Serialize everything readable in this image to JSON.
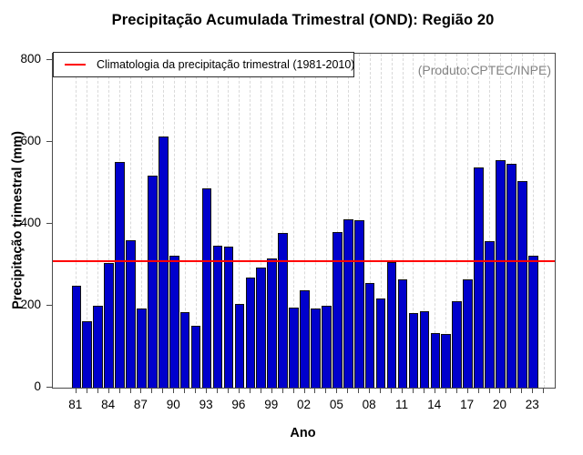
{
  "title": "Precipitação Acumulada Trimestral (OND): Região 20",
  "watermark": "(Produto:CPTEC/INPE)",
  "xlabel": "Ano",
  "ylabel": "Precipitação trimestral (mm)",
  "legend": {
    "label": "Climatologia da precipitação trimestral (1981-2010)",
    "line_color": "#ff0000"
  },
  "colors": {
    "bar_fill": "#0000cc",
    "bar_border": "#101010",
    "climatology_line": "#ff0000",
    "gridline": "#d9d9d9",
    "watermark_text": "#838383",
    "frame": "#4a4a4a"
  },
  "chart_data": {
    "type": "bar",
    "title": "Precipitação Acumulada Trimestral (OND): Região 20",
    "xlabel": "Ano",
    "ylabel": "Precipitação trimestral (mm)",
    "x": [
      "81",
      "82",
      "83",
      "84",
      "85",
      "86",
      "87",
      "88",
      "89",
      "90",
      "91",
      "92",
      "93",
      "94",
      "95",
      "96",
      "97",
      "98",
      "99",
      "00",
      "01",
      "02",
      "03",
      "04",
      "05",
      "06",
      "07",
      "08",
      "09",
      "10",
      "11",
      "12",
      "13",
      "14",
      "15",
      "16",
      "17",
      "18",
      "19",
      "20",
      "21",
      "22",
      "23",
      "24"
    ],
    "values": [
      248,
      162,
      200,
      305,
      551,
      360,
      193,
      517,
      614,
      322,
      185,
      152,
      487,
      347,
      344,
      204,
      268,
      294,
      315,
      378,
      196,
      237,
      194,
      199,
      380,
      411,
      408,
      255,
      217,
      306,
      264,
      183,
      186,
      134,
      130,
      211,
      265,
      538,
      358,
      556,
      546,
      504,
      322,
      null
    ],
    "x_tick_label_every": 3,
    "y_ticks": [
      0,
      200,
      400,
      600,
      800
    ],
    "ylim": [
      0,
      800
    ],
    "climatology_value": 308,
    "climatology_period": "1981-2010",
    "grid": "vertical-dashed",
    "legend_position": "top-left",
    "legend_entries": [
      "Climatologia da precipitação trimestral (1981-2010)"
    ]
  }
}
